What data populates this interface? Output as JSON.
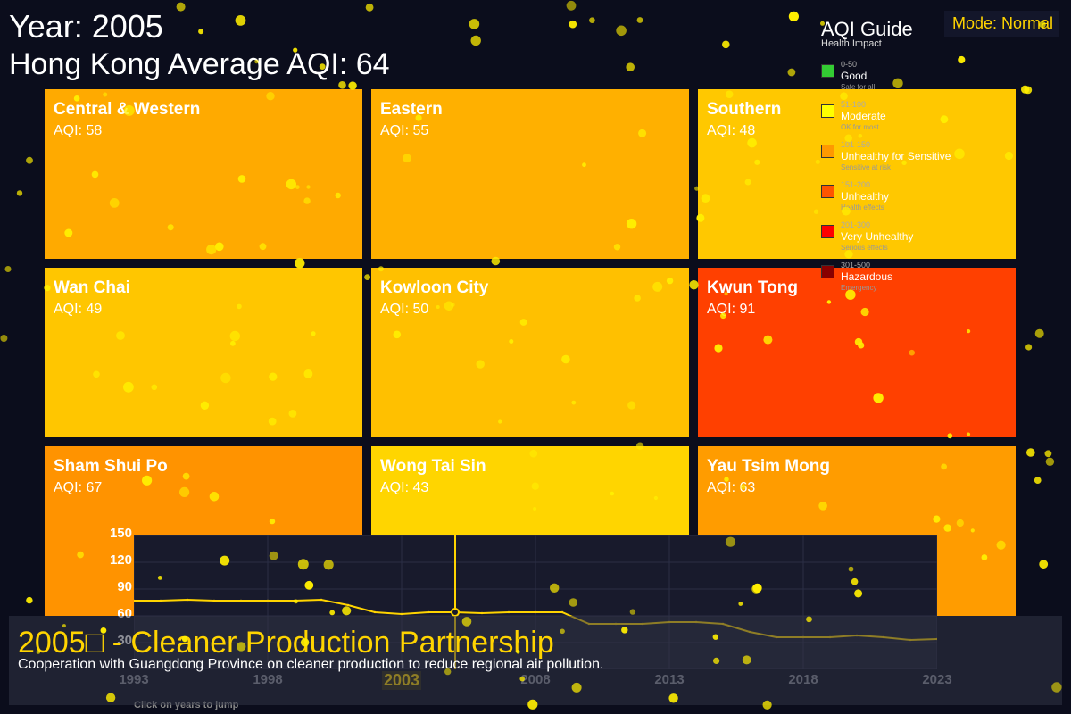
{
  "header": {
    "year_text": "Year: 2005",
    "average_text": "Hong Kong Average AQI: 64"
  },
  "mode_button": {
    "label": "Mode: Normal"
  },
  "districts": [
    {
      "name": "Central & Western",
      "aqi_text": "AQI: 58",
      "aqi": 58,
      "color": "#ffaa00"
    },
    {
      "name": "Eastern",
      "aqi_text": "AQI: 55",
      "aqi": 55,
      "color": "#ffb000"
    },
    {
      "name": "Southern",
      "aqi_text": "AQI: 48",
      "aqi": 48,
      "color": "#ffc800"
    },
    {
      "name": "Wan Chai",
      "aqi_text": "AQI: 49",
      "aqi": 49,
      "color": "#ffc600"
    },
    {
      "name": "Kowloon City",
      "aqi_text": "AQI: 50",
      "aqi": 50,
      "color": "#ffc000"
    },
    {
      "name": "Kwun Tong",
      "aqi_text": "AQI: 91",
      "aqi": 91,
      "color": "#ff4000"
    },
    {
      "name": "Sham Shui Po",
      "aqi_text": "AQI: 67",
      "aqi": 67,
      "color": "#ff9300"
    },
    {
      "name": "Wong Tai Sin",
      "aqi_text": "AQI: 43",
      "aqi": 43,
      "color": "#ffd500"
    },
    {
      "name": "Yau Tsim Mong",
      "aqi_text": "AQI: 63",
      "aqi": 63,
      "color": "#ff9c00"
    }
  ],
  "guide": {
    "title": "AQI Guide",
    "subtitle": "Health Impact",
    "items": [
      {
        "range": "0-50",
        "label": "Good",
        "effect": "Safe for all",
        "color": "#33cc33"
      },
      {
        "range": "51-100",
        "label": "Moderate",
        "effect": "OK for most",
        "color": "#ffff00"
      },
      {
        "range": "101-150",
        "label": "Unhealthy for Sensitive",
        "effect": "Sensitive at risk",
        "color": "#ff9900"
      },
      {
        "range": "151-200",
        "label": "Unhealthy",
        "effect": "Health effects",
        "color": "#ff5500"
      },
      {
        "range": "201-300",
        "label": "Very Unhealthy",
        "effect": "Serious effects",
        "color": "#ff0000"
      },
      {
        "range": "301-500",
        "label": "Hazardous",
        "effect": "Emergency",
        "color": "#880000"
      }
    ]
  },
  "timeline": {
    "y_ticks": [
      "150",
      "120",
      "90",
      "60",
      "30"
    ],
    "x_labels": [
      "1993",
      "1998",
      "2003",
      "2008",
      "2013",
      "2018",
      "2023"
    ],
    "selected_label": "2003",
    "hint": "Click on years to jump",
    "line_color": "#ffd400"
  },
  "chart_data": {
    "type": "line",
    "x": [
      1993,
      1994,
      1995,
      1996,
      1997,
      1998,
      1999,
      2000,
      2001,
      2002,
      2003,
      2004,
      2005,
      2006,
      2007,
      2008,
      2009,
      2010,
      2011,
      2012,
      2013,
      2014,
      2015,
      2016,
      2017,
      2018,
      2019,
      2020,
      2021,
      2022,
      2023
    ],
    "values": [
      77,
      77,
      78,
      77,
      77,
      77,
      77,
      78,
      72,
      64,
      62,
      64,
      64,
      63,
      64,
      64,
      64,
      51,
      51,
      51,
      53,
      53,
      51,
      42,
      36,
      36,
      36,
      38,
      36,
      33,
      34
    ],
    "ylim": [
      0,
      150
    ],
    "xlim": [
      1993,
      2023
    ],
    "selected_x": 2005,
    "grid": true
  },
  "event": {
    "title": "2005□ - Cleaner Production Partnership",
    "description": "Cooperation with Guangdong Province on cleaner production to reduce regional air pollution."
  }
}
